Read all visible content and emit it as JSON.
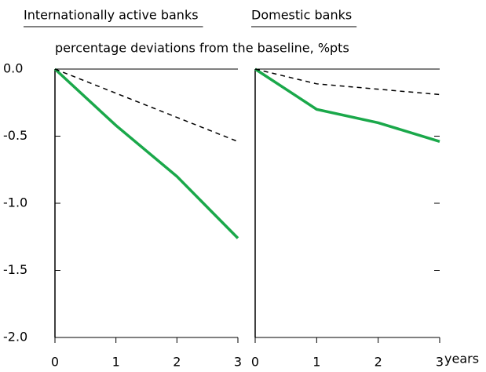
{
  "chart_data": [
    {
      "type": "line",
      "title": "Internationally active banks",
      "subtitle": "percentage deviations from the baseline, %pts",
      "x": [
        0,
        1,
        2,
        3
      ],
      "xlim": [
        0,
        3
      ],
      "xticks": [
        0,
        1,
        2,
        3
      ],
      "ylim": [
        -2,
        0
      ],
      "yticks": [
        {
          "value": -2,
          "label": "-2.0"
        },
        -1.5,
        {
          "value": -1,
          "label": "-1.0"
        },
        -0.5,
        {
          "value": 0,
          "label": "0.0"
        }
      ],
      "series": [
        {
          "color": "#1aa84a",
          "dashed": false,
          "values": [
            0,
            -0.42,
            -0.8,
            -1.26
          ]
        },
        {
          "color": "#000000",
          "dashed": true,
          "values": [
            0,
            -0.18,
            -0.36,
            -0.54
          ]
        }
      ]
    },
    {
      "type": "line",
      "title": "Domestic banks",
      "xlabel": "years",
      "x": [
        0,
        1,
        2,
        3
      ],
      "xlim": [
        0,
        3
      ],
      "xticks": [
        0,
        1,
        2,
        3
      ],
      "ylim": [
        -2,
        0
      ],
      "yticks": [
        -2,
        -1.5,
        -1,
        -0.5,
        0
      ],
      "series": [
        {
          "color": "#1aa84a",
          "dashed": false,
          "values": [
            0,
            -0.3,
            -0.4,
            -0.54
          ]
        },
        {
          "color": "#000000",
          "dashed": true,
          "values": [
            0,
            -0.11,
            -0.15,
            -0.19
          ]
        }
      ]
    }
  ]
}
